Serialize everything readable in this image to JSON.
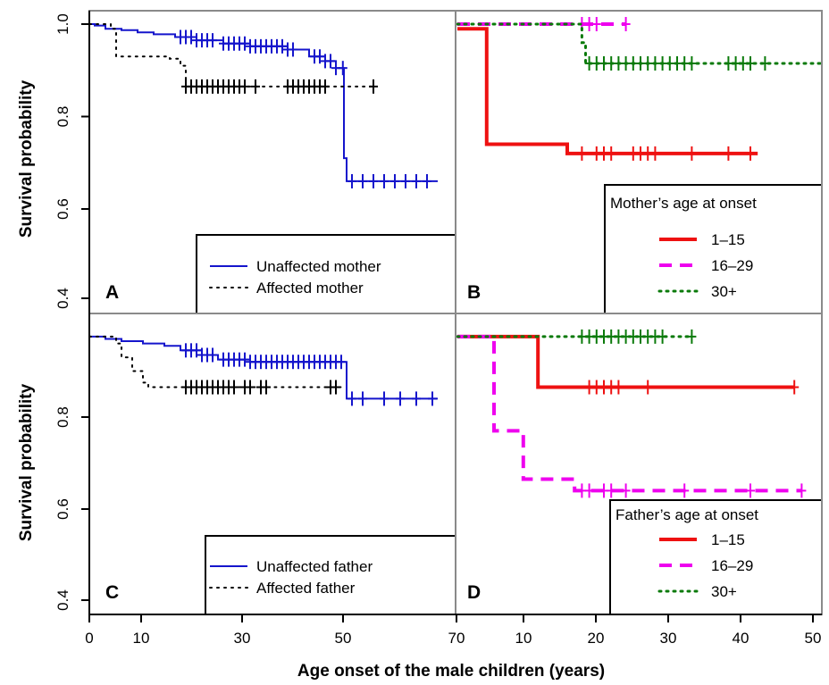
{
  "chart_data": {
    "type": "line",
    "subtype": "kaplan-meier survival curves, 2x2 panel grid",
    "xlabel": "Age onset of the male children (years)",
    "ylabel": "Survival probability",
    "colors": {
      "blue": "#1515cc",
      "black": "#000000",
      "red": "#ee1111",
      "magenta": "#ee00ee",
      "green": "#0a7a0a"
    },
    "panels": [
      {
        "letter": "A",
        "x_ticks": [
          "0",
          "10",
          "30",
          "50",
          "70"
        ],
        "y_ticks": [
          "0.4",
          "0.6",
          "0.8",
          "1.0"
        ],
        "ylim": [
          0.38,
          1.0
        ],
        "legend": {
          "title": "",
          "entries": [
            "Unaffected mother",
            "Affected mother"
          ]
        },
        "series": [
          {
            "name": "Unaffected mother",
            "color": "blue",
            "style": "solid",
            "steps": [
              [
                0,
                1.0
              ],
              [
                1,
                0.997
              ],
              [
                3,
                0.99
              ],
              [
                6,
                0.987
              ],
              [
                9,
                0.982
              ],
              [
                12,
                0.978
              ],
              [
                16,
                0.972
              ],
              [
                20,
                0.965
              ],
              [
                25,
                0.958
              ],
              [
                30,
                0.952
              ],
              [
                37,
                0.945
              ],
              [
                41,
                0.93
              ],
              [
                44,
                0.92
              ],
              [
                46,
                0.905
              ],
              [
                47.5,
                0.71
              ],
              [
                48,
                0.66
              ],
              [
                65,
                0.66
              ]
            ],
            "censored": [
              17,
              18,
              19,
              20,
              21,
              22,
              23,
              25,
              26,
              27,
              28,
              29,
              30,
              31,
              32,
              33,
              34,
              35,
              36,
              37,
              38,
              42,
              43,
              44,
              45,
              46,
              47.3,
              49,
              51,
              53,
              55,
              57,
              59,
              61,
              63
            ]
          },
          {
            "name": "Affected mother",
            "color": "black",
            "style": "dotted",
            "steps": [
              [
                0,
                1.0
              ],
              [
                4,
                0.99
              ],
              [
                5,
                0.93
              ],
              [
                15,
                0.925
              ],
              [
                17,
                0.91
              ],
              [
                18,
                0.865
              ],
              [
                53,
                0.865
              ]
            ],
            "censored": [
              18,
              19,
              20,
              21,
              22,
              23,
              24,
              25,
              26,
              27,
              28,
              29,
              31,
              37,
              38,
              39,
              40,
              41,
              42,
              43,
              44,
              53
            ]
          }
        ]
      },
      {
        "letter": "B",
        "x_ticks": [],
        "y_ticks": [],
        "ylim": [
          0.38,
          1.0
        ],
        "legend": {
          "title": "Mother’s age at onset",
          "entries": [
            "1–15",
            "16–29",
            "30+"
          ]
        },
        "series": [
          {
            "name": "1–15",
            "color": "red",
            "style": "solid",
            "steps": [
              [
                0,
                0.99
              ],
              [
                4,
                0.99
              ],
              [
                4,
                0.74
              ],
              [
                15,
                0.74
              ],
              [
                15,
                0.72
              ],
              [
                41,
                0.72
              ]
            ],
            "censored": [
              17,
              19,
              20,
              21,
              24,
              25,
              26,
              27,
              32,
              37,
              40
            ]
          },
          {
            "name": "16–29",
            "color": "magenta",
            "style": "dashed",
            "steps": [
              [
                0,
                1.0
              ],
              [
                23,
                1.0
              ]
            ],
            "censored": [
              17,
              18,
              19,
              23
            ]
          },
          {
            "name": "30+",
            "color": "green",
            "style": "dotted",
            "steps": [
              [
                0,
                1.0
              ],
              [
                17,
                1.0
              ],
              [
                17,
                0.96
              ],
              [
                17.5,
                0.915
              ],
              [
                50,
                0.915
              ]
            ],
            "censored": [
              18,
              19,
              20,
              21,
              22,
              23,
              24,
              25,
              26,
              27,
              28,
              29,
              30,
              31,
              32,
              37,
              38,
              39,
              40,
              42
            ]
          }
        ]
      },
      {
        "letter": "C",
        "x_ticks": [],
        "y_ticks": [
          "0.4",
          "0.6",
          "0.8"
        ],
        "ylim": [
          0.38,
          0.98
        ],
        "legend": {
          "title": "",
          "entries": [
            "Unaffected father",
            "Affected father"
          ]
        },
        "series": [
          {
            "name": "Unaffected father",
            "color": "blue",
            "style": "solid",
            "steps": [
              [
                0,
                0.975
              ],
              [
                3,
                0.97
              ],
              [
                6,
                0.965
              ],
              [
                10,
                0.96
              ],
              [
                14,
                0.955
              ],
              [
                17,
                0.945
              ],
              [
                21,
                0.935
              ],
              [
                24,
                0.925
              ],
              [
                30,
                0.92
              ],
              [
                46,
                0.92
              ],
              [
                48,
                0.84
              ],
              [
                65,
                0.84
              ]
            ],
            "censored": [
              18,
              19,
              20,
              21,
              22,
              23,
              25,
              26,
              27,
              28,
              29,
              30,
              31,
              32,
              33,
              34,
              35,
              36,
              37,
              38,
              39,
              40,
              41,
              42,
              43,
              44,
              45,
              46,
              47,
              49,
              51,
              55,
              58,
              61,
              64
            ]
          },
          {
            "name": "Affected father",
            "color": "black",
            "style": "dotted",
            "steps": [
              [
                0,
                0.975
              ],
              [
                5,
                0.96
              ],
              [
                6,
                0.93
              ],
              [
                8,
                0.9
              ],
              [
                10,
                0.875
              ],
              [
                11,
                0.865
              ],
              [
                47,
                0.865
              ]
            ],
            "censored": [
              18,
              19,
              20,
              21,
              22,
              23,
              24,
              25,
              26,
              27,
              29,
              30,
              32,
              33,
              45,
              46
            ]
          }
        ]
      },
      {
        "letter": "D",
        "x_ticks": [
          "10",
          "20",
          "30",
          "40",
          "50"
        ],
        "y_ticks": [],
        "ylim": [
          0.38,
          0.98
        ],
        "legend": {
          "title": "Father’s age at onset",
          "entries": [
            "1–15",
            "16–29",
            "30+"
          ]
        },
        "series": [
          {
            "name": "1–15",
            "color": "red",
            "style": "solid",
            "steps": [
              [
                0,
                0.975
              ],
              [
                11,
                0.975
              ],
              [
                11,
                0.865
              ],
              [
                46,
                0.865
              ]
            ],
            "censored": [
              18,
              19,
              20,
              21,
              22,
              26,
              46
            ]
          },
          {
            "name": "16–29",
            "color": "magenta",
            "style": "dashed",
            "steps": [
              [
                0,
                0.975
              ],
              [
                5,
                0.975
              ],
              [
                5,
                0.77
              ],
              [
                9,
                0.77
              ],
              [
                9,
                0.665
              ],
              [
                16,
                0.665
              ],
              [
                16,
                0.64
              ],
              [
                47,
                0.64
              ]
            ],
            "censored": [
              17,
              18,
              20,
              21,
              23,
              31,
              40,
              47
            ]
          },
          {
            "name": "30+",
            "color": "green",
            "style": "dotted",
            "steps": [
              [
                0,
                0.975
              ],
              [
                32,
                0.975
              ]
            ],
            "censored": [
              17,
              18,
              19,
              20,
              21,
              22,
              23,
              24,
              25,
              26,
              27,
              28,
              32
            ]
          }
        ]
      }
    ]
  }
}
